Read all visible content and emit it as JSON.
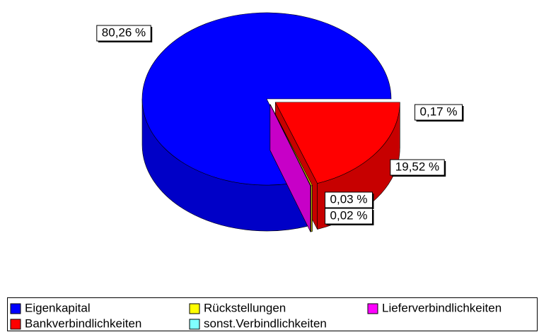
{
  "chart_data": {
    "type": "pie3d",
    "categories": [
      "Eigenkapital",
      "Bankverbindlichkeiten",
      "Rückstellungen",
      "sonst.Verbindlichkeiten",
      "Lieferverbindlichkeiten"
    ],
    "values": [
      80.26,
      19.52,
      0.17,
      0.03,
      0.02
    ],
    "value_labels": [
      "80,26 %",
      "19,52 %",
      "0,17 %",
      "0,03 %",
      "0,02 %"
    ],
    "colors": [
      "#0000ff",
      "#ff0000",
      "#ffff00",
      "#80ffff",
      "#ff00ff"
    ],
    "legend": "bottom"
  }
}
